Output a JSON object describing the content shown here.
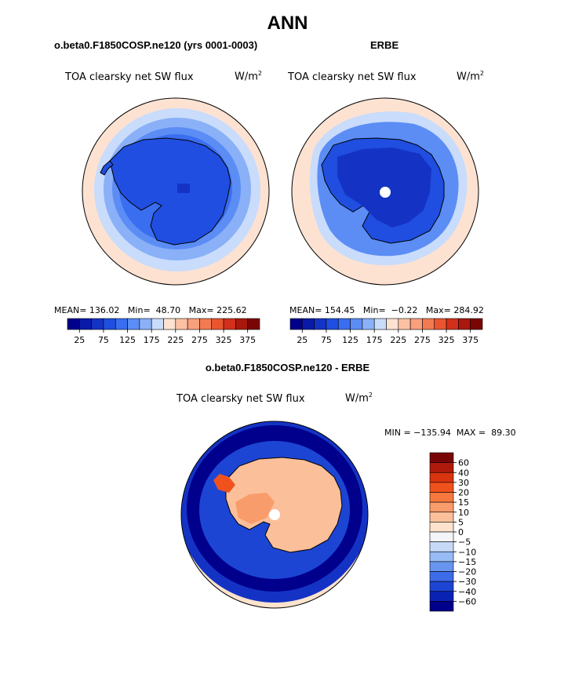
{
  "title": "ANN",
  "panels": [
    {
      "subtitle": "o.beta0.F1850COSP.ne120 (yrs 0001-0003)",
      "label": "TOA clearsky net SW flux",
      "units_base": "W/m",
      "units_exp": "2",
      "mean_label": "MEAN=",
      "mean_value": "136.02",
      "min_label": "Min=",
      "min_value": "48.70",
      "max_label": "Max=",
      "max_value": "225.62"
    },
    {
      "subtitle": "ERBE",
      "label": "TOA clearsky net SW flux",
      "units_base": "W/m",
      "units_exp": "2",
      "mean_label": "MEAN=",
      "mean_value": "154.45",
      "min_label": "Min=",
      "min_value": "−0.22",
      "max_label": "Max=",
      "max_value": "284.92"
    }
  ],
  "diff_panel": {
    "subtitle": "o.beta0.F1850COSP.ne120 - ERBE",
    "label": "TOA clearsky net SW flux",
    "units_base": "W/m",
    "units_exp": "2",
    "minmax_text": "MIN = −135.94  MAX =  89.30"
  },
  "chart_data": [
    {
      "type": "heatmap",
      "projection": "south-polar-stereographic",
      "title": "TOA clearsky net SW flux",
      "colorbar": {
        "orientation": "horizontal",
        "tick_labels": [
          "25",
          "75",
          "125",
          "175",
          "225",
          "275",
          "325",
          "375"
        ],
        "colors": [
          "#00008c",
          "#0a1aa8",
          "#1433c4",
          "#1f4ee0",
          "#3a6ef0",
          "#5b8df5",
          "#8ab0f8",
          "#c9dcfb",
          "#fde2d2",
          "#fcc1a5",
          "#f9a07c",
          "#f47a52",
          "#ea5530",
          "#d2301a",
          "#a8180e",
          "#7a0505"
        ]
      }
    },
    {
      "type": "heatmap",
      "projection": "south-polar-stereographic",
      "title": "TOA clearsky net SW flux",
      "colorbar": {
        "orientation": "horizontal",
        "tick_labels": [
          "25",
          "75",
          "125",
          "175",
          "225",
          "275",
          "325",
          "375"
        ],
        "colors": [
          "#00008c",
          "#0a1aa8",
          "#1433c4",
          "#1f4ee0",
          "#3a6ef0",
          "#5b8df5",
          "#8ab0f8",
          "#c9dcfb",
          "#fde2d2",
          "#fcc1a5",
          "#f9a07c",
          "#f47a52",
          "#ea5530",
          "#d2301a",
          "#a8180e",
          "#7a0505"
        ]
      }
    },
    {
      "type": "heatmap",
      "projection": "south-polar-stereographic",
      "title": "TOA clearsky net SW flux",
      "colorbar": {
        "orientation": "vertical",
        "tick_labels": [
          "60",
          "40",
          "30",
          "20",
          "15",
          "10",
          "5",
          "0",
          "−5",
          "−10",
          "−15",
          "−20",
          "−30",
          "−40",
          "−60"
        ],
        "colors": [
          "#7a0505",
          "#b01a0c",
          "#d8340f",
          "#f0521e",
          "#f6783f",
          "#f99c6b",
          "#fbbf9a",
          "#fde3cd",
          "#f3f4f8",
          "#c6daf8",
          "#98bbf5",
          "#6795f0",
          "#3e6ce8",
          "#1d45d4",
          "#0a22b4",
          "#00008c"
        ]
      }
    }
  ]
}
